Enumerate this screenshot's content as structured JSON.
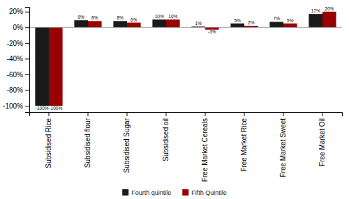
{
  "chart_data": {
    "type": "bar",
    "categories": [
      "Subsidised Rice",
      "Subsidised flour",
      "Subsidised Sugar",
      "Subsidised oil",
      "Free Market Cereals",
      "Free Market Rice",
      "Free Market Sweet",
      "Free Market Oil"
    ],
    "series": [
      {
        "name": "Fourth quintile",
        "color": "#1a1a1a",
        "values": [
          -100,
          9,
          8,
          10,
          1,
          5,
          7,
          17
        ],
        "value_labels": [
          "-100%",
          "9%",
          "8%",
          "10%",
          "1%",
          "5%",
          "7%",
          "17%"
        ]
      },
      {
        "name": "Fifth Quintile",
        "color": "#990000",
        "values": [
          -100,
          8,
          6,
          10,
          -3,
          2,
          5,
          20
        ],
        "value_labels": [
          "-100%",
          "8%",
          "6%",
          "10%",
          "-3%",
          "2%",
          "5%",
          "20%"
        ]
      }
    ],
    "ylim": [
      -108,
      26
    ],
    "yticks": [
      {
        "value": -100,
        "label": "-100%"
      },
      {
        "value": -80,
        "label": "-80%"
      },
      {
        "value": -60,
        "label": "-60%"
      },
      {
        "value": -40,
        "label": "-40%"
      },
      {
        "value": -20,
        "label": "-20%"
      },
      {
        "value": 0,
        "label": "0%"
      },
      {
        "value": 20,
        "label": "20%"
      }
    ],
    "grid": false,
    "data_labels": true,
    "legend": "bottom"
  }
}
